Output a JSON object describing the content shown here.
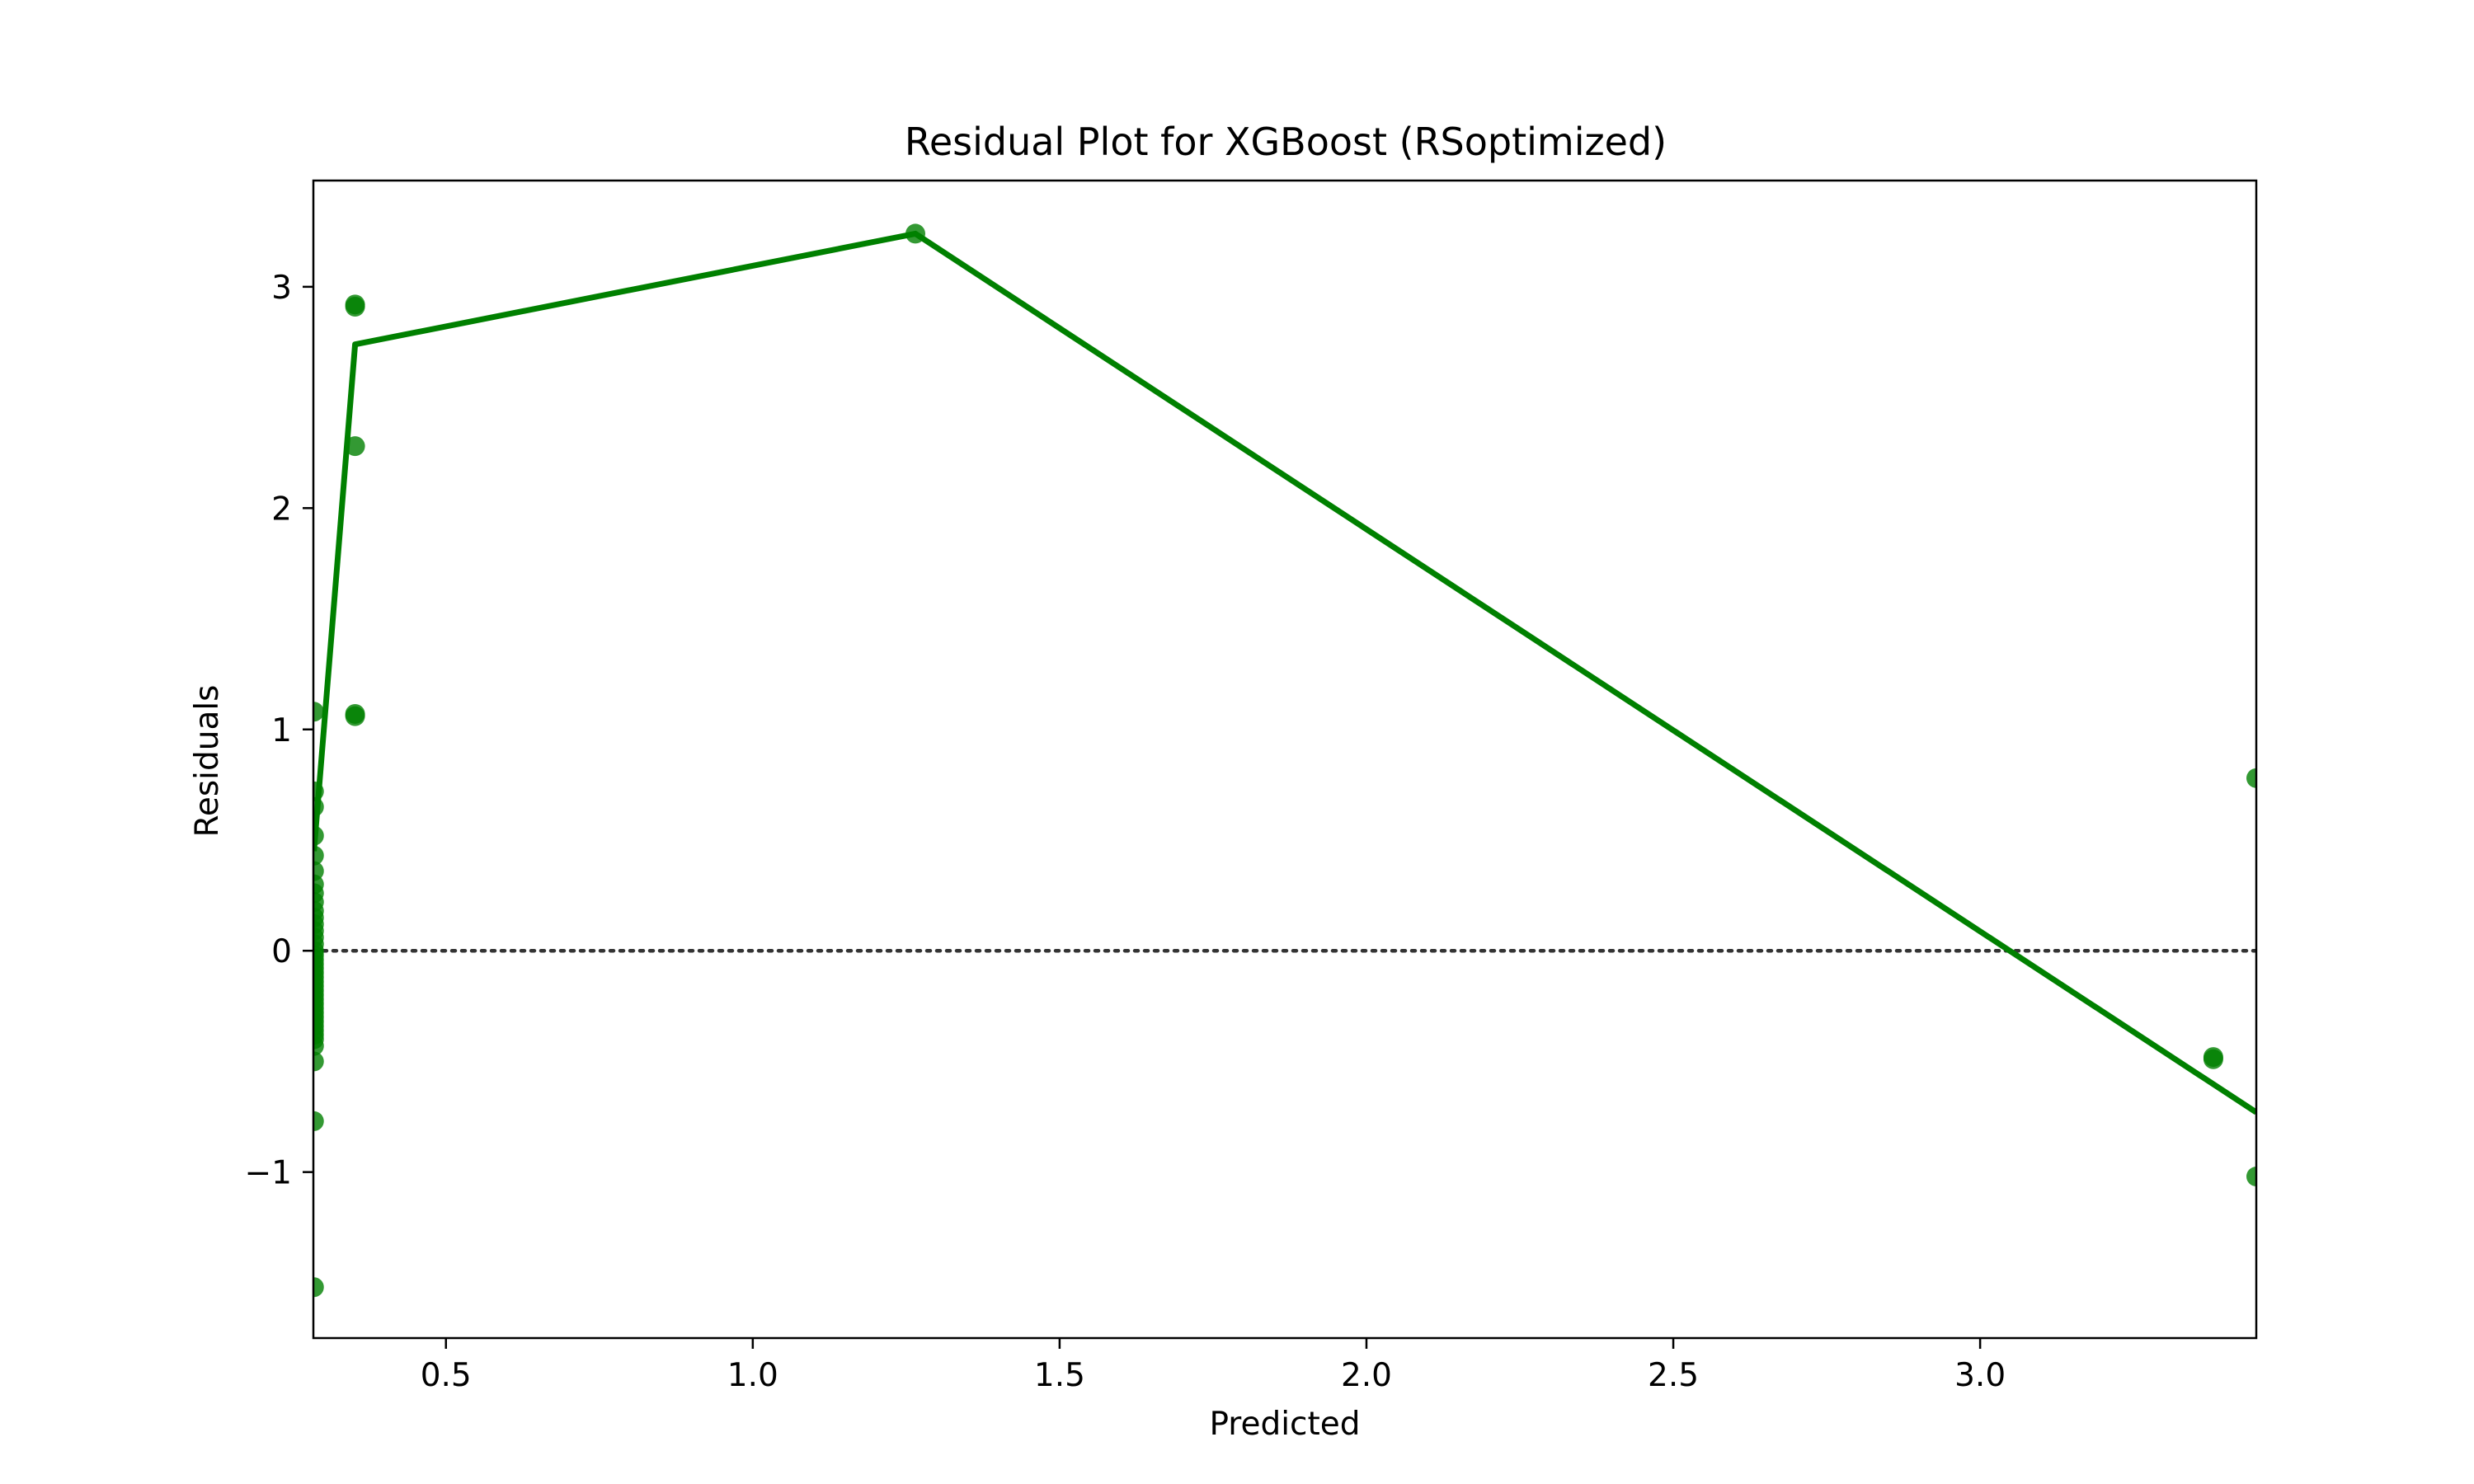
{
  "chart_data": {
    "type": "scatter",
    "title": "Residual Plot for XGBoost (RSoptimized)",
    "xlabel": "Predicted",
    "ylabel": "Residuals",
    "xlim": [
      0.284,
      3.45
    ],
    "ylim": [
      -1.75,
      3.48
    ],
    "xticks": [
      0.5,
      1.0,
      1.5,
      2.0,
      2.5,
      3.0
    ],
    "xtick_labels": [
      "0.5",
      "1.0",
      "1.5",
      "2.0",
      "2.5",
      "3.0"
    ],
    "yticks": [
      -1,
      0,
      1,
      2,
      3
    ],
    "ytick_labels": [
      "−1",
      "0",
      "1",
      "2",
      "3"
    ],
    "grid": false,
    "reference_line": {
      "y": 0,
      "style": "dotted",
      "color": "#333333"
    },
    "colors": {
      "points": "#008000",
      "fit_line": "#008000"
    },
    "series": [
      {
        "kind": "points",
        "x": [
          0.285,
          0.285,
          0.285,
          0.285,
          0.285,
          0.285,
          0.285,
          0.285,
          0.285,
          0.285,
          0.285,
          0.285,
          0.285,
          0.285,
          0.285,
          0.285,
          0.285,
          0.285,
          0.285,
          0.285,
          0.285,
          0.285,
          0.285,
          0.285,
          0.285,
          0.285,
          0.285,
          0.285,
          0.285,
          0.285,
          0.285,
          0.285,
          0.285,
          0.285,
          0.285,
          0.285,
          0.285,
          0.285,
          0.285,
          0.285,
          0.352,
          0.352,
          0.352,
          0.352,
          0.352,
          1.265,
          3.38,
          3.38,
          3.45,
          3.45
        ],
        "y": [
          1.08,
          0.72,
          0.65,
          0.52,
          0.43,
          0.36,
          0.3,
          0.26,
          0.22,
          0.18,
          0.15,
          0.12,
          0.09,
          0.06,
          0.03,
          0.0,
          -0.02,
          -0.04,
          -0.06,
          -0.08,
          -0.1,
          -0.12,
          -0.14,
          -0.16,
          -0.18,
          -0.2,
          -0.22,
          -0.24,
          -0.26,
          -0.28,
          -0.3,
          -0.32,
          -0.34,
          -0.36,
          -0.38,
          -0.4,
          -0.43,
          -0.5,
          -0.77,
          -1.52,
          2.92,
          2.91,
          2.28,
          1.06,
          1.07,
          3.24,
          -0.48,
          -0.49,
          0.78,
          -1.02
        ]
      },
      {
        "kind": "line",
        "x": [
          0.285,
          0.352,
          1.265,
          3.45
        ],
        "y": [
          0.45,
          2.74,
          3.24,
          -0.73
        ]
      }
    ]
  }
}
